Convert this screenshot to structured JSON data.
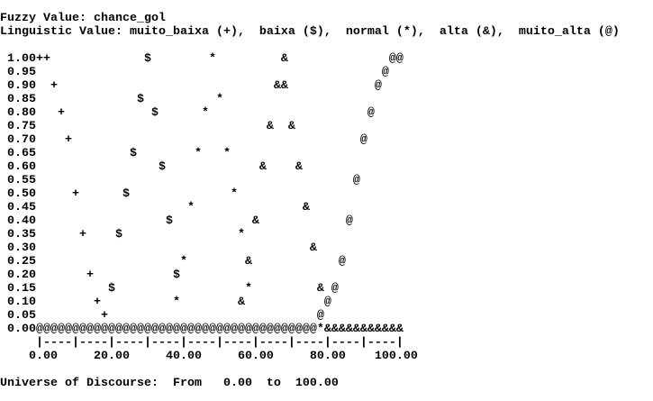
{
  "header": {
    "fuzzy_value": "Fuzzy Value: chance_gol",
    "linguistic_value": "Linguistic Value: muito_baixa (+),  baixa ($),  normal (*),  alta (&),  muito_alta (@)"
  },
  "plot_rows": [
    " 1.00++             $        *         &              @@",
    " 0.95                                                @",
    " 0.90  +                              &&            @",
    " 0.85              $          *",
    " 0.80   +            $      *                      @",
    " 0.75                                &  &",
    " 0.70    +                                        @",
    " 0.65             $        *   *",
    " 0.60                 $             &    &",
    " 0.55                                            @",
    " 0.50     +      $              *",
    " 0.45                     *               &",
    " 0.40                  $           &            @",
    " 0.35      +    $                *",
    " 0.30                                      &",
    " 0.25                    *        &            @",
    " 0.20       +           $",
    " 0.15          $                  *         & @",
    " 0.10        +          *        &           @",
    " 0.05         +                             @",
    " 0.00@@@@@@@@@@@@@@@@@@@@@@@@@@@@@@@@@@@@@@@*&&&&&&&&&&&"
  ],
  "axis": "     |----|----|----|----|----|----|----|----|----|----|",
  "axis_labels": "    0.00     20.00     40.00     60.00     80.00    100.00",
  "footer": "Universe of Discourse:  From   0.00  to  100.00"
}
